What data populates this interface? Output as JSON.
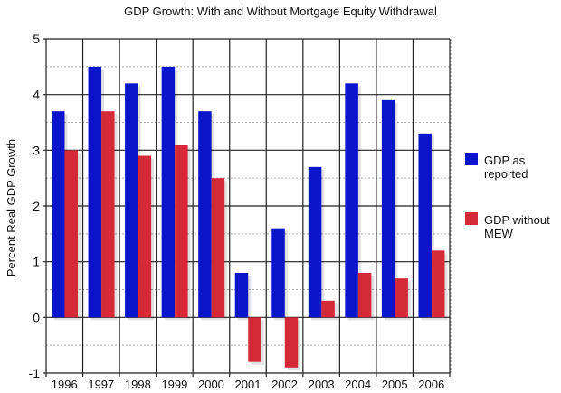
{
  "chart_data": {
    "type": "bar",
    "title": "GDP Growth: With and Without Mortgage Equity Withdrawal",
    "xlabel": "",
    "ylabel": "Percent Real GDP Growth",
    "ylim": [
      -1,
      5
    ],
    "yticks": [
      "-1",
      "0",
      "1",
      "2",
      "3",
      "4",
      "5"
    ],
    "grid": true,
    "legend_position": "right",
    "categories": [
      "1996",
      "1997",
      "1998",
      "1999",
      "2000",
      "2001",
      "2002",
      "2003",
      "2004",
      "2005",
      "2006"
    ],
    "series": [
      {
        "name": "GDP as reported",
        "legend_lines": [
          "GDP as",
          "reported"
        ],
        "color": "#0a14c8",
        "values": [
          3.7,
          4.5,
          4.2,
          4.5,
          3.7,
          0.8,
          1.6,
          2.7,
          4.2,
          3.9,
          3.3
        ]
      },
      {
        "name": "GDP without MEW",
        "legend_lines": [
          "GDP without",
          "MEW"
        ],
        "color": "#d42a38",
        "values": [
          3.0,
          3.7,
          2.9,
          3.1,
          2.5,
          -0.8,
          -0.9,
          0.3,
          0.8,
          0.7,
          1.2
        ]
      }
    ]
  }
}
